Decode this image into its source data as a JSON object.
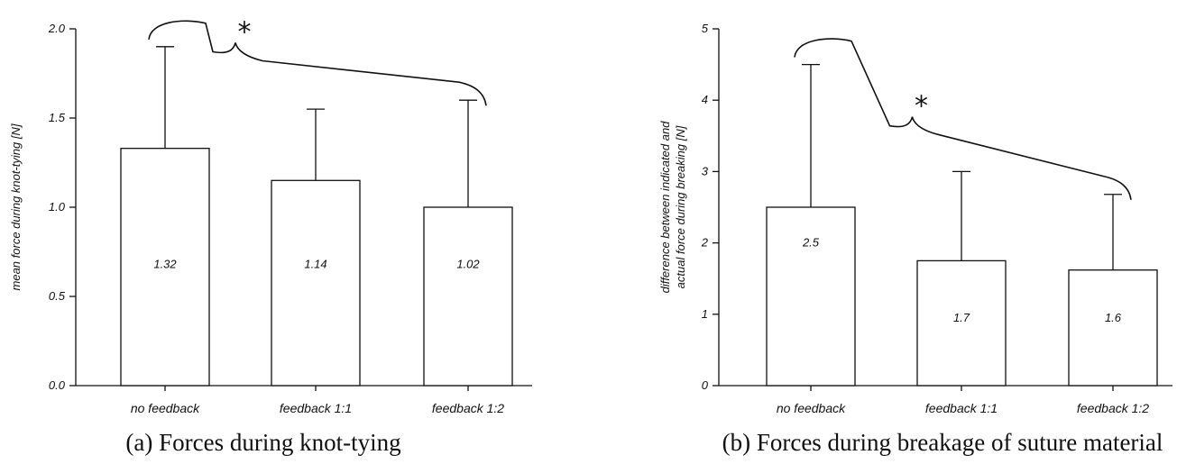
{
  "chart_data": [
    {
      "type": "bar",
      "categories": [
        "no feedback",
        "feedback 1:1",
        "feedback 1:2"
      ],
      "values": [
        1.32,
        1.14,
        1.02
      ],
      "bar_heights": [
        1.33,
        1.15,
        1.0
      ],
      "error_upper": [
        1.9,
        1.55,
        1.6
      ],
      "data_labels": [
        "1.32",
        "1.14",
        "1.02"
      ],
      "ylabel": "mean force during knot-tying [N]",
      "ylim": [
        0,
        2.0
      ],
      "yticks": [
        "0.0",
        "0.5",
        "1.0",
        "1.5",
        "2.0"
      ],
      "ytick_values": [
        0,
        0.5,
        1.0,
        1.5,
        2.0
      ],
      "significance_marker": "*",
      "significance_between": [
        "no feedback",
        "feedback 1:2"
      ],
      "caption": "(a) Forces during knot-tying"
    },
    {
      "type": "bar",
      "categories": [
        "no feedback",
        "feedback 1:1",
        "feedback 1:2"
      ],
      "values": [
        2.5,
        1.7,
        1.6
      ],
      "bar_heights": [
        2.5,
        1.75,
        1.62
      ],
      "error_upper": [
        4.5,
        3.0,
        2.68
      ],
      "data_labels": [
        "2.5",
        "1.7",
        "1.6"
      ],
      "ylabel_lines": [
        "difference between indicated and",
        "actual force during breaking [N]"
      ],
      "ylim": [
        0,
        5
      ],
      "yticks": [
        "0",
        "1",
        "2",
        "3",
        "4",
        "5"
      ],
      "ytick_values": [
        0,
        1,
        2,
        3,
        4,
        5
      ],
      "significance_marker": "*",
      "significance_between": [
        "no feedback",
        "feedback 1:2"
      ],
      "caption": "(b) Forces during breakage of suture material"
    }
  ]
}
